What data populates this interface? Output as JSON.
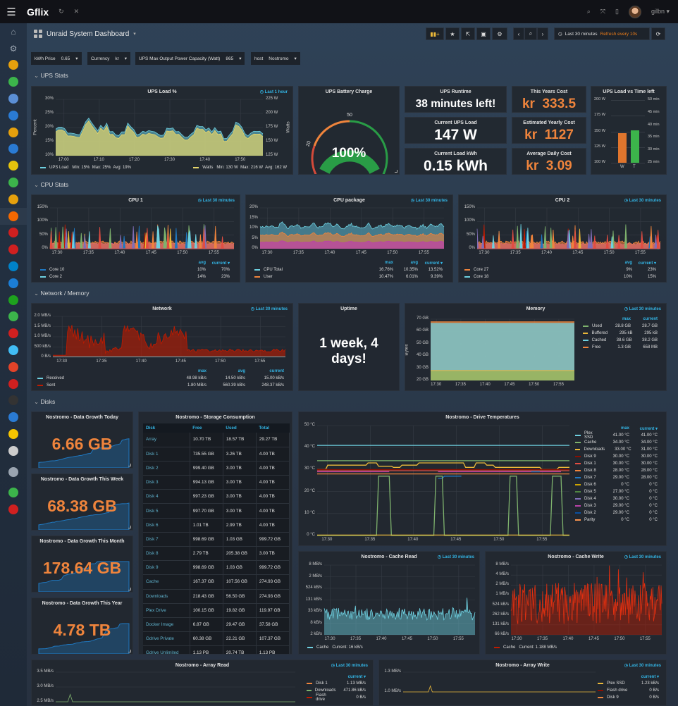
{
  "topbar": {
    "brand": "Gflix",
    "user": "gilbn"
  },
  "sidebar": {
    "items": [
      {
        "icon": "home-icon",
        "color": "#9aa4b0"
      },
      {
        "icon": "gear-icon",
        "color": "#9aa4b0"
      },
      {
        "icon": "plex-icon",
        "color": "#e5a00d"
      },
      {
        "icon": "play-diamond-icon",
        "color": "#3cb44b"
      },
      {
        "icon": "disk-app-icon",
        "color": "#5b8fd6"
      },
      {
        "icon": "cloud-icon",
        "color": "#2a7bd4"
      },
      {
        "icon": "search-app-icon",
        "color": "#e5a00d"
      },
      {
        "icon": "lifebuoy-app-icon",
        "color": "#2a7bd4"
      },
      {
        "icon": "lifebuoy-yellow-icon",
        "color": "#e5c30d"
      },
      {
        "icon": "power-app-icon",
        "color": "#3cb44b"
      },
      {
        "icon": "tools-app-icon",
        "color": "#e5a00d"
      },
      {
        "icon": "grafana-icon",
        "color": "#f46800"
      },
      {
        "icon": "shield-app-icon",
        "color": "#d02020"
      },
      {
        "icon": "people-app-icon",
        "color": "#d02020"
      },
      {
        "icon": "nextcloud-icon",
        "color": "#0082c9"
      },
      {
        "icon": "unifi-icon",
        "color": "#1c7ed6"
      },
      {
        "icon": "magnet-app-icon",
        "color": "#1ea21e"
      },
      {
        "icon": "bowl-app-icon",
        "color": "#3cb44b"
      },
      {
        "icon": "toggle-app-icon",
        "color": "#d02020"
      },
      {
        "icon": "home-assistant-icon",
        "color": "#41bdf5"
      },
      {
        "icon": "gitlab-icon",
        "color": "#e24329"
      },
      {
        "icon": "download-app-icon",
        "color": "#d02020"
      },
      {
        "icon": "lazy-app-icon",
        "color": "#333333"
      },
      {
        "icon": "drop-app-icon",
        "color": "#2a7bd4"
      },
      {
        "icon": "sabnzbd-icon",
        "color": "#f5c400"
      },
      {
        "icon": "book-app-icon",
        "color": "#cccccc"
      },
      {
        "icon": "sign-out-icon",
        "color": "#9aa4b0"
      },
      {
        "icon": "github-icon",
        "color": "#3cb44b"
      },
      {
        "icon": "help-lifebuoy-icon",
        "color": "#d02020"
      }
    ]
  },
  "dashboard": {
    "title": "Unraid System Dashboard",
    "time_range": "Last 30 minutes",
    "refresh": "Refresh every 10s"
  },
  "variables": [
    {
      "label": "kWh Price",
      "value": "0.65"
    },
    {
      "label": "Currency",
      "value": "kr"
    },
    {
      "label": "UPS Max Output Power Capacity (Watt)",
      "value": "865"
    },
    {
      "label": "host",
      "value": "Nostromo"
    }
  ],
  "rows": {
    "ups": "UPS Stats",
    "cpu": "CPU Stats",
    "netmem": "Network / Memory",
    "disks": "Disks"
  },
  "badge30": "Last 30 minutes",
  "panels": {
    "ups_load": {
      "title": "UPS Load %",
      "badge": "Last 1 hour",
      "y_label": "Percent",
      "y2_label": "Watts",
      "y_ticks": [
        "30%",
        "25%",
        "20%",
        "15%",
        "10%"
      ],
      "y2_ticks": [
        "225 W",
        "200 W",
        "175 W",
        "150 W",
        "125 W"
      ],
      "x_ticks": [
        "17:00",
        "17:10",
        "17:20",
        "17:30",
        "17:40",
        "17:50"
      ],
      "legend": [
        {
          "name": "UPS Load",
          "color": "#6ed0e0",
          "text": "Min: 15%  Max: 25%  Avg: 19%"
        },
        {
          "name": "Watts",
          "color": "#e5d56b",
          "text": "Min: 130 W  Max: 216 W  Avg: 162 W"
        }
      ]
    },
    "battery": {
      "title": "UPS Battery Charge",
      "value": "100%",
      "level_pct": 100,
      "ticks": [
        "0",
        "20",
        "50",
        "100"
      ]
    },
    "runtime": {
      "title": "UPS Runtime",
      "value": "38 minutes left!"
    },
    "current_load": {
      "title": "Current UPS Load",
      "value": "147 W"
    },
    "load_kwh": {
      "title": "Current Load kWh",
      "value": "0.15 kWh"
    },
    "year_cost": {
      "title": "This Years Cost",
      "value": "kr  333.5"
    },
    "yearly_est": {
      "title": "Estimated Yearly Cost",
      "value": "kr  1127"
    },
    "daily_cost": {
      "title": "Average Daily Cost",
      "value": "kr  3.09"
    },
    "load_vs_time": {
      "title": "UPS Load vs Time left",
      "y_ticks": [
        "200 W",
        "175 W",
        "150 W",
        "125 W",
        "100 W"
      ],
      "y2_ticks": [
        "50 min",
        "45 min",
        "40 min",
        "35 min",
        "30 min",
        "25 min"
      ],
      "bars": [
        {
          "label": "W",
          "value": 147,
          "min": 100,
          "max": 200,
          "color": "#e0752d"
        },
        {
          "label": "T",
          "value": 38,
          "min": 25,
          "max": 50,
          "color": "#3cb44b"
        }
      ]
    },
    "cpu1": {
      "title": "CPU 1",
      "y_ticks": [
        "150%",
        "100%",
        "50%",
        "0%"
      ],
      "x_ticks": [
        "17:30",
        "17:35",
        "17:40",
        "17:45",
        "17:50",
        "17:55"
      ],
      "cols": [
        "avg",
        "current ▾"
      ],
      "legend": [
        {
          "name": "Core 10",
          "color": "#1f78c1",
          "values": [
            "10%",
            "70%"
          ]
        },
        {
          "name": "Core 2",
          "color": "#6ed0e0",
          "values": [
            "14%",
            "23%"
          ]
        }
      ]
    },
    "cpu_pkg": {
      "title": "CPU package",
      "y_ticks": [
        "20%",
        "15%",
        "10%",
        "5%",
        "0%"
      ],
      "x_ticks": [
        "17:30",
        "17:35",
        "17:40",
        "17:45",
        "17:50",
        "17:55"
      ],
      "cols": [
        "max",
        "avg",
        "current ▾"
      ],
      "legend": [
        {
          "name": "CPU Total",
          "color": "#6ed0e0",
          "values": [
            "16.76%",
            "10.35%",
            "13.52%"
          ]
        },
        {
          "name": "User",
          "color": "#ef843c",
          "values": [
            "10.47%",
            "6.01%",
            "9.39%"
          ]
        }
      ]
    },
    "cpu2": {
      "title": "CPU 2",
      "y_ticks": [
        "150%",
        "100%",
        "50%",
        "0%"
      ],
      "x_ticks": [
        "17:30",
        "17:35",
        "17:40",
        "17:45",
        "17:50",
        "17:55"
      ],
      "cols": [
        "avg",
        "current ▾"
      ],
      "legend": [
        {
          "name": "Core 27",
          "color": "#ef843c",
          "values": [
            "9%",
            "23%"
          ]
        },
        {
          "name": "Core 18",
          "color": "#6ed0e0",
          "values": [
            "10%",
            "15%"
          ]
        }
      ]
    },
    "network": {
      "title": "Network",
      "y_ticks": [
        "2.0 MB/s",
        "1.5 MB/s",
        "1.0 MB/s",
        "500 kB/s",
        "0 B/s"
      ],
      "x_ticks": [
        "17:30",
        "17:35",
        "17:40",
        "17:45",
        "17:50",
        "17:55"
      ],
      "cols": [
        "max",
        "avg",
        "current"
      ],
      "legend": [
        {
          "name": "Received",
          "color": "#6ed0e0",
          "values": [
            "48.98 kB/s",
            "14.50 kB/s",
            "15.00 kB/s"
          ]
        },
        {
          "name": "Sent",
          "color": "#bf1b00",
          "values": [
            "1.80 MB/s",
            "560.39 kB/s",
            "248.37 kB/s"
          ]
        }
      ]
    },
    "uptime": {
      "title": "Uptime",
      "value": "1 week, 4 days!"
    },
    "memory": {
      "title": "Memory",
      "y_label": "Bytes",
      "y_ticks": [
        "70 GB",
        "60 GB",
        "50 GB",
        "40 GB",
        "30 GB",
        "20 GB"
      ],
      "x_ticks": [
        "17:30",
        "17:35",
        "17:40",
        "17:45",
        "17:50",
        "17:55"
      ],
      "cols": [
        "max",
        "current"
      ],
      "legend": [
        {
          "name": "Used",
          "color": "#7eb26d",
          "values": [
            "28.8 GB",
            "28.7 GB"
          ]
        },
        {
          "name": "Buffered",
          "color": "#eab839",
          "values": [
            "295 kB",
            "295 kB"
          ]
        },
        {
          "name": "Cached",
          "color": "#6ed0e0",
          "values": [
            "38.6 GB",
            "38.2 GB"
          ]
        },
        {
          "name": "Free",
          "color": "#ef843c",
          "values": [
            "1.3 GB",
            "658 MB"
          ]
        }
      ]
    },
    "growth": [
      {
        "title": "Nostromo - Data Growth Today",
        "value": "6.66 GB"
      },
      {
        "title": "Nostromo - Data Growth This Week",
        "value": "68.38 GB"
      },
      {
        "title": "Nostromo - Data Growth This Month",
        "value": "178.64 GB"
      },
      {
        "title": "Nostromo - Data Growth This Year",
        "value": "4.78 TB"
      }
    ],
    "storage": {
      "title": "Nostromo - Storage Consumption",
      "columns": [
        "Disk",
        "Free",
        "Used",
        "Total"
      ],
      "rows": [
        [
          "Array",
          "10.70 TB",
          "18.57 TB",
          "29.27 TB"
        ],
        [
          "Disk 1",
          "735.55 GB",
          "3.26 TB",
          "4.00 TB"
        ],
        [
          "Disk 2",
          "999.40 GB",
          "3.00 TB",
          "4.00 TB"
        ],
        [
          "Disk 3",
          "994.13 GB",
          "3.00 TB",
          "4.00 TB"
        ],
        [
          "Disk 4",
          "997.23 GB",
          "3.00 TB",
          "4.00 TB"
        ],
        [
          "Disk 5",
          "997.70 GB",
          "3.00 TB",
          "4.00 TB"
        ],
        [
          "Disk 6",
          "1.01 TB",
          "2.99 TB",
          "4.00 TB"
        ],
        [
          "Disk 7",
          "998.69 GB",
          "1.03 GB",
          "999.72 GB"
        ],
        [
          "Disk 8",
          "2.79 TB",
          "205.38 GB",
          "3.00 TB"
        ],
        [
          "Disk 9",
          "998.69 GB",
          "1.03 GB",
          "999.72 GB"
        ],
        [
          "Cache",
          "167.37 GB",
          "107.56 GB",
          "274.93 GB"
        ],
        [
          "Downloads",
          "218.43 GB",
          "56.50 GB",
          "274.93 GB"
        ],
        [
          "Plex Drive",
          "100.15 GB",
          "19.82 GB",
          "119.97 GB"
        ],
        [
          "Docker Image",
          "6.87 GB",
          "29.47 GB",
          "37.58 GB"
        ],
        [
          "Gdrive Private",
          "60.38 GB",
          "22.21 GB",
          "107.37 GB"
        ],
        [
          "Gdrive Unlimited",
          "1.13 PB",
          "20.74 TB",
          "1.13 PB"
        ]
      ]
    },
    "temps": {
      "title": "Nostromo - Drive Temperatures",
      "y_ticks": [
        "50 °C",
        "40 °C",
        "30 °C",
        "20 °C",
        "10 °C",
        "0 °C"
      ],
      "x_ticks": [
        "17:30",
        "17:35",
        "17:40",
        "17:45",
        "17:50",
        "17:55"
      ],
      "cols": [
        "max",
        "current ▾"
      ],
      "legend": [
        {
          "name": "Plex SSD",
          "color": "#6ed0e0",
          "values": [
            "41.00 °C",
            "41.00 °C"
          ]
        },
        {
          "name": "Cache",
          "color": "#7eb26d",
          "values": [
            "34.00 °C",
            "34.00 °C"
          ]
        },
        {
          "name": "Downloads",
          "color": "#eab839",
          "values": [
            "33.00 °C",
            "31.00 °C"
          ]
        },
        {
          "name": "Disk 9",
          "color": "#890f02",
          "values": [
            "30.00 °C",
            "30.00 °C"
          ]
        },
        {
          "name": "Disk 1",
          "color": "#e24d42",
          "values": [
            "30.00 °C",
            "30.00 °C"
          ]
        },
        {
          "name": "Disk 8",
          "color": "#ef843c",
          "values": [
            "28.00 °C",
            "28.00 °C"
          ]
        },
        {
          "name": "Disk 7",
          "color": "#1f78c1",
          "values": [
            "29.00 °C",
            "28.00 °C"
          ]
        },
        {
          "name": "Disk 6",
          "color": "#cca300",
          "values": [
            "0 °C",
            "0 °C"
          ]
        },
        {
          "name": "Disk 5",
          "color": "#508642",
          "values": [
            "27.00 °C",
            "0 °C"
          ]
        },
        {
          "name": "Disk 4",
          "color": "#806eb7",
          "values": [
            "30.00 °C",
            "0 °C"
          ]
        },
        {
          "name": "Disk 3",
          "color": "#ba43a9",
          "values": [
            "29.00 °C",
            "0 °C"
          ]
        },
        {
          "name": "Disk 2",
          "color": "#0a50a1",
          "values": [
            "29.00 °C",
            "0 °C"
          ]
        },
        {
          "name": "Parity",
          "color": "#f9934e",
          "values": [
            "0 °C",
            "0 °C"
          ]
        }
      ]
    },
    "cache_read": {
      "title": "Nostromo - Cache Read",
      "y_ticks": [
        "8 MB/s",
        "2 MB/s",
        "524 kB/s",
        "131 kB/s",
        "33 kB/s",
        "8 kB/s",
        "2 kB/s"
      ],
      "x_ticks": [
        "17:30",
        "17:35",
        "17:40",
        "17:45",
        "17:50",
        "17:55"
      ],
      "legend": [
        {
          "name": "Cache",
          "color": "#6ed0e0",
          "text": "Current: 16 kB/s"
        }
      ]
    },
    "cache_write": {
      "title": "Nostromo - Cache Write",
      "y_ticks": [
        "8 MB/s",
        "4 MB/s",
        "2 MB/s",
        "1 MB/s",
        "524 kB/s",
        "262 kB/s",
        "131 kB/s",
        "66 kB/s"
      ],
      "x_ticks": [
        "17:30",
        "17:35",
        "17:40",
        "17:45",
        "17:50",
        "17:55"
      ],
      "legend": [
        {
          "name": "Cache",
          "color": "#bf1b00",
          "text": "Current: 1.188 MB/s"
        }
      ]
    },
    "array_read": {
      "title": "Nostromo - Array Read",
      "y_ticks": [
        "3.5 MB/s",
        "3.0 MB/s",
        "2.5 MB/s"
      ],
      "cols": [
        "current ▾"
      ],
      "legend": [
        {
          "name": "Disk 1",
          "color": "#ef843c",
          "values": [
            "1.13 MB/s"
          ]
        },
        {
          "name": "Downloads",
          "color": "#7eb26d",
          "values": [
            "471.86 kB/s"
          ]
        },
        {
          "name": "Flash drive",
          "color": "#bf1b00",
          "values": [
            "0 B/s"
          ]
        }
      ]
    },
    "array_write": {
      "title": "Nostromo - Array Write",
      "y_ticks": [
        "1.3 MB/s",
        "1.0 MB/s"
      ],
      "cols": [
        "current ▾"
      ],
      "legend": [
        {
          "name": "Plex SSD",
          "color": "#eab839",
          "values": [
            "1.23 kB/s"
          ]
        },
        {
          "name": "Flash drive",
          "color": "#890f02",
          "values": [
            "0 B/s"
          ]
        },
        {
          "name": "Disk 9",
          "color": "#ef843c",
          "values": [
            "0 B/s"
          ]
        }
      ]
    }
  },
  "colors": {
    "accent": "#33b5e5",
    "cost": "#ef843c",
    "refresh": "#eb7b18"
  }
}
